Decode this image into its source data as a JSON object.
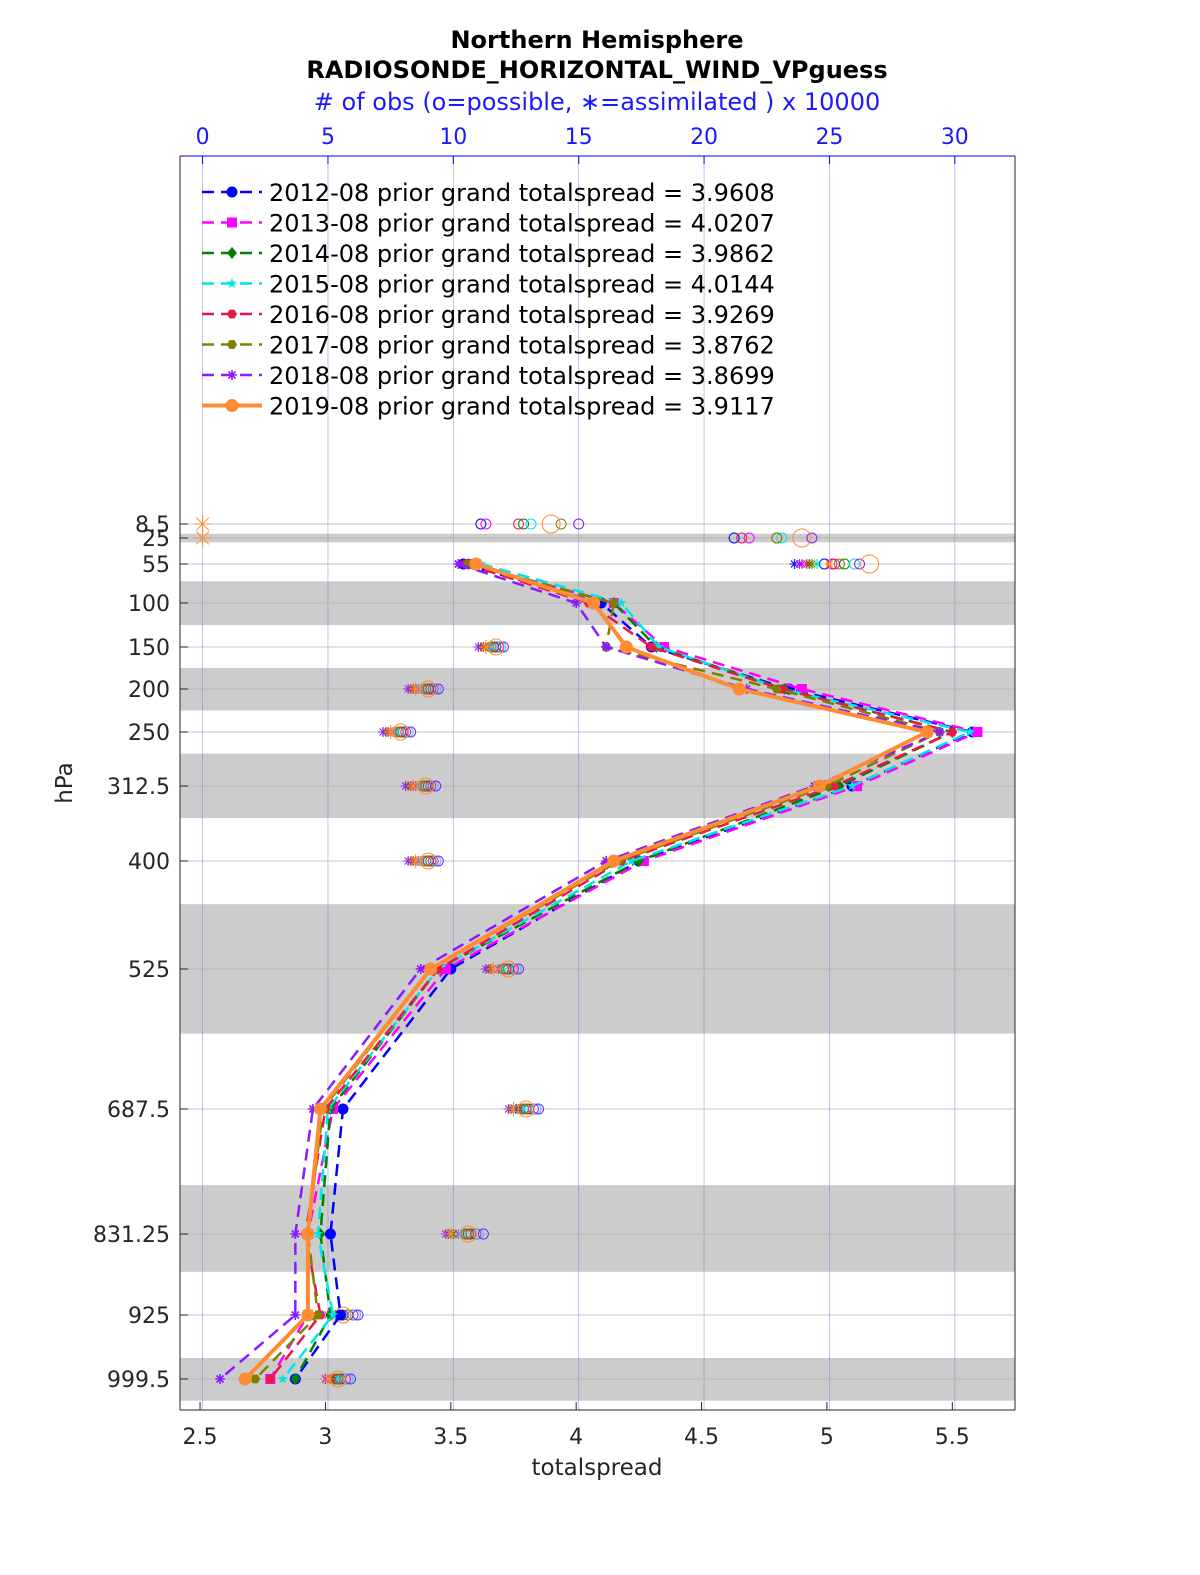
{
  "chart_data": {
    "type": "line",
    "title": "Northern Hemisphere",
    "subtitle": "RADIOSONDE_HORIZONTAL_WIND_VPguess",
    "top_axis_label": "# of obs (o=possible, ∗=assimilated ) x 10000",
    "xlabel": "totalspread",
    "ylabel": "hPa",
    "xlim": [
      2.42,
      5.75
    ],
    "x_ticks": [
      "2.5",
      "3",
      "3.5",
      "4",
      "4.5",
      "5",
      "5.5"
    ],
    "x_tick_values": [
      2.5,
      3,
      3.5,
      4,
      4.5,
      5,
      5.5
    ],
    "top_xlim": [
      -0.9,
      32.4
    ],
    "top_ticks": [
      "0",
      "5",
      "10",
      "15",
      "20",
      "25",
      "30"
    ],
    "top_tick_values": [
      0,
      5,
      10,
      15,
      20,
      25,
      30
    ],
    "levels": [
      8.5,
      25,
      55,
      100,
      150,
      200,
      250,
      312.5,
      400,
      525,
      687.5,
      831.25,
      925,
      999.5
    ],
    "level_labels": [
      "8.5",
      "25",
      "55",
      "100",
      "150",
      "200",
      "250",
      "312.5",
      "400",
      "525",
      "687.5",
      "831.25",
      "925",
      "999.5"
    ],
    "shaded_bands_hPa": [
      [
        20,
        30
      ],
      [
        75,
        125
      ],
      [
        175,
        225
      ],
      [
        275,
        350
      ],
      [
        450,
        600
      ],
      [
        775,
        875
      ],
      [
        975,
        1025
      ]
    ],
    "line_levels": [
      55,
      100,
      150,
      200,
      250,
      312.5,
      400,
      525,
      687.5,
      831.25,
      925,
      999.5
    ],
    "series": [
      {
        "name": "2012-08",
        "legend": "2012-08 prior grand totalspread = 3.9608",
        "color": "#0000ff",
        "marker": "circle",
        "style": "dashed",
        "values": [
          3.55,
          4.1,
          4.3,
          4.85,
          5.58,
          5.1,
          4.25,
          3.5,
          3.07,
          3.02,
          3.06,
          2.88
        ],
        "possible": [
          null,
          null,
          11.6,
          9.0,
          7.9,
          8.9,
          9.0,
          12.0,
          12.8,
          10.5,
          5.5,
          5.3
        ],
        "assimilated": [
          null,
          null,
          11.5,
          8.5,
          7.5,
          8.4,
          8.5,
          11.5,
          12.5,
          9.8,
          5.3,
          5.0
        ]
      },
      {
        "name": "2013-08",
        "legend": "2013-08 prior grand totalspread = 4.0207",
        "color": "#ff00ff",
        "marker": "square",
        "style": "dashed",
        "values": [
          3.58,
          4.15,
          4.35,
          4.9,
          5.6,
          5.12,
          4.27,
          3.48,
          3.03,
          2.93,
          2.93,
          2.78
        ],
        "possible": [
          null,
          null,
          11.8,
          9.2,
          8.1,
          9.1,
          9.2,
          12.4,
          13.2,
          10.9,
          6.0,
          5.7
        ],
        "assimilated": [
          null,
          null,
          11.4,
          8.6,
          7.6,
          8.5,
          8.6,
          11.8,
          12.7,
          10.2,
          5.6,
          5.3
        ]
      },
      {
        "name": "2014-08",
        "legend": "2014-08 prior grand totalspread = 3.9862",
        "color": "#008000",
        "marker": "diamond",
        "style": "dashed",
        "values": [
          3.57,
          4.15,
          4.32,
          4.83,
          5.5,
          5.05,
          4.25,
          3.45,
          3.02,
          2.98,
          3.02,
          2.88
        ],
        "possible": [
          null,
          null,
          11.7,
          9.1,
          8.0,
          9.0,
          9.1,
          12.2,
          13.0,
          10.7,
          5.8,
          5.5
        ],
        "assimilated": [
          null,
          null,
          11.3,
          8.5,
          7.5,
          8.4,
          8.5,
          11.6,
          12.6,
          10.0,
          5.4,
          5.2
        ]
      },
      {
        "name": "2015-08",
        "legend": "2015-08 prior grand totalspread = 4.0144",
        "color": "#00e6e6",
        "marker": "star",
        "style": "dashed",
        "values": [
          3.62,
          4.18,
          4.33,
          4.82,
          5.57,
          5.1,
          4.22,
          3.45,
          3.01,
          2.97,
          3.03,
          2.83
        ],
        "possible": [
          null,
          null,
          11.9,
          9.3,
          8.2,
          9.2,
          9.3,
          12.5,
          13.3,
          11.0,
          6.1,
          5.8
        ],
        "assimilated": [
          null,
          null,
          11.5,
          8.7,
          7.7,
          8.6,
          8.7,
          11.9,
          12.8,
          10.3,
          5.7,
          5.4
        ]
      },
      {
        "name": "2016-08",
        "legend": "2016-08 prior grand totalspread = 3.9269",
        "color": "#e6194b",
        "marker": "hexagon",
        "style": "dashed",
        "values": [
          3.56,
          4.05,
          4.3,
          4.82,
          5.5,
          5.03,
          4.18,
          3.45,
          3.0,
          2.92,
          2.98,
          2.78
        ],
        "possible": [
          null,
          null,
          11.6,
          9.0,
          7.9,
          8.9,
          9.0,
          12.1,
          12.9,
          10.6,
          5.6,
          5.4
        ],
        "assimilated": [
          null,
          null,
          11.2,
          8.4,
          7.4,
          8.3,
          8.4,
          11.5,
          12.4,
          9.9,
          5.2,
          5.1
        ]
      },
      {
        "name": "2017-08",
        "legend": "2017-08 prior grand totalspread = 3.8762",
        "color": "#808000",
        "marker": "hexagon",
        "style": "dashed",
        "values": [
          3.57,
          4.15,
          4.12,
          4.8,
          5.45,
          5.0,
          4.17,
          3.42,
          2.99,
          2.93,
          2.97,
          2.72
        ],
        "possible": [
          null,
          null,
          11.5,
          8.9,
          7.8,
          8.8,
          8.9,
          12.0,
          12.8,
          10.5,
          5.5,
          5.3
        ],
        "assimilated": [
          null,
          null,
          11.1,
          8.3,
          7.3,
          8.2,
          8.3,
          11.4,
          12.3,
          9.8,
          5.1,
          5.0
        ]
      },
      {
        "name": "2018-08",
        "legend": "2018-08 prior grand totalspread = 3.8699",
        "color": "#8c1aff",
        "marker": "asterisk",
        "style": "dashed",
        "values": [
          3.53,
          4.0,
          4.12,
          4.68,
          5.45,
          4.95,
          4.12,
          3.38,
          2.95,
          2.88,
          2.88,
          2.58
        ],
        "possible": [
          null,
          null,
          12.0,
          9.4,
          8.3,
          9.3,
          9.4,
          12.6,
          13.4,
          11.2,
          6.2,
          5.9
        ],
        "assimilated": [
          null,
          null,
          11.0,
          8.2,
          7.2,
          8.1,
          8.2,
          11.3,
          12.2,
          9.7,
          5.0,
          4.9
        ]
      },
      {
        "name": "2019-08",
        "legend": "2019-08 prior grand totalspread = 3.9117",
        "color": "#ff8c33",
        "marker": "circle",
        "style": "solid",
        "values": [
          3.6,
          4.07,
          4.2,
          4.65,
          5.4,
          4.97,
          4.15,
          3.42,
          2.98,
          2.93,
          2.93,
          2.68
        ],
        "possible": [
          null,
          null,
          11.7,
          9.0,
          7.9,
          8.9,
          9.0,
          12.2,
          12.9,
          10.6,
          5.6,
          5.4
        ],
        "assimilated": [
          null,
          null,
          11.3,
          8.5,
          7.5,
          8.4,
          8.5,
          11.6,
          12.4,
          9.9,
          5.2,
          5.0
        ]
      }
    ],
    "obs_counts": [
      {
        "level": 8.5,
        "possible": [
          11.1,
          11.3,
          12.8,
          13.1,
          12.6,
          14.3,
          15.0,
          13.9
        ],
        "assimilated_2019": 0
      },
      {
        "level": 25,
        "possible": [
          21.2,
          21.8,
          22.9,
          23.1,
          21.5,
          22.9,
          24.3,
          23.9
        ],
        "assimilated_2019": 0
      },
      {
        "level": 55,
        "possible": [
          24.8,
          25.2,
          25.6,
          26.0,
          25.1,
          25.4,
          26.2,
          26.6
        ],
        "assimilated": [
          23.6,
          23.9,
          24.2,
          24.5,
          24.1,
          24.3,
          23.8,
          25.0
        ]
      }
    ]
  }
}
